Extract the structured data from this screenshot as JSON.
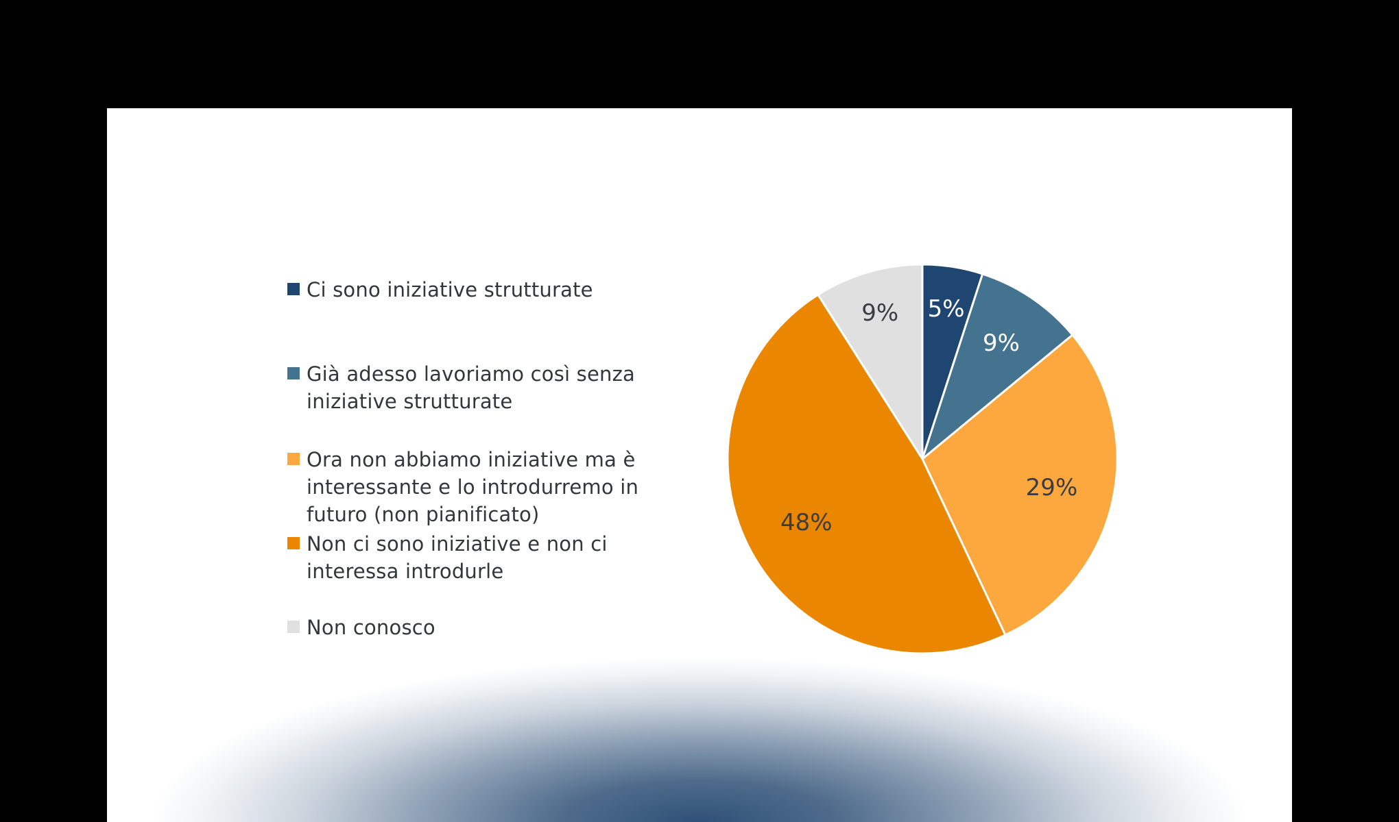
{
  "colors": {
    "background": "#000000",
    "slide": "#ffffff",
    "text": "#333638",
    "glow": "#2f5177"
  },
  "legend": {
    "items": [
      {
        "label": "Ci sono iniziative strutturate",
        "color": "#1f4670"
      },
      {
        "label": "Già adesso lavoriamo così senza\niniziative strutturate",
        "color": "#44738f"
      },
      {
        "label": "Ora non abbiamo iniziative ma è\ninteressante e lo introdurremo in\nfuturo (non pianificato)",
        "color": "#fda83f"
      },
      {
        "label": "Non ci sono iniziative e non ci\ninteressa introdurle",
        "color": "#ea8600"
      },
      {
        "label": "Non conosco",
        "color": "#e0e0e0"
      }
    ]
  },
  "chart_data": {
    "type": "pie",
    "title": "",
    "categories": [
      "Ci sono iniziative strutturate",
      "Già adesso lavoriamo così senza iniziative strutturate",
      "Ora non abbiamo iniziative ma è interessante e lo introdurremo in futuro (non pianificato)",
      "Non ci sono iniziative e non ci interessa introdurle",
      "Non conosco"
    ],
    "values": [
      5,
      9,
      29,
      48,
      9
    ],
    "value_labels": [
      "5%",
      "9%",
      "29%",
      "48%",
      "9%"
    ],
    "colors": [
      "#1f4670",
      "#44738f",
      "#fda83f",
      "#ea8600",
      "#e0e0e0"
    ],
    "label_colors": [
      "#ffffff",
      "#ffffff",
      "#3a3c40",
      "#3a3c40",
      "#3a3c40"
    ],
    "start_angle_deg": 0,
    "direction": "clockwise",
    "legend_position": "left",
    "slice_border_color": "#ffffff"
  }
}
